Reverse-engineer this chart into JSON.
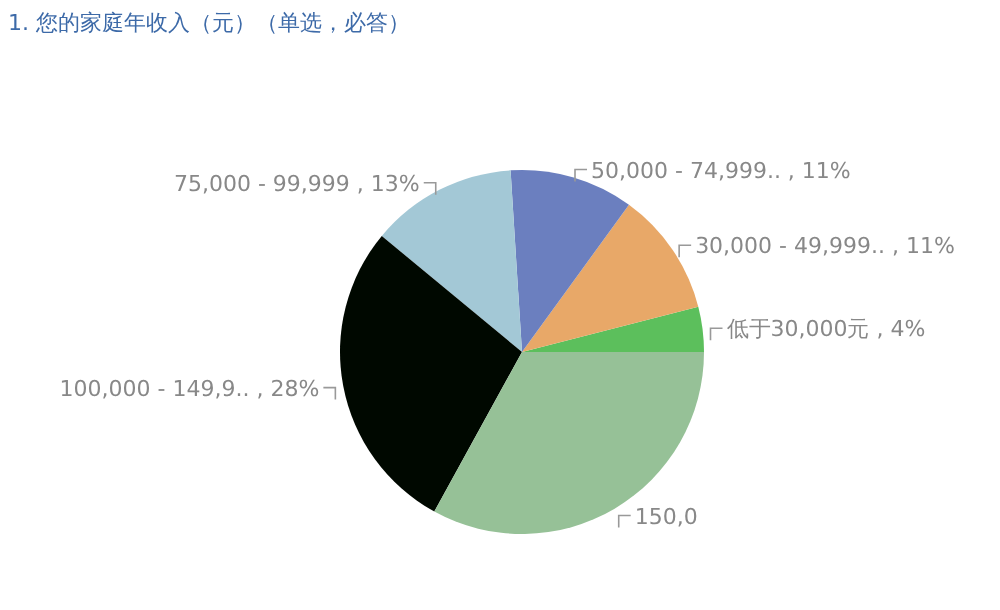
{
  "chart_data": {
    "type": "pie",
    "title": "1. 您的家庭年收入（元）（单选，必答）",
    "categories": [
      "低于30,000元",
      "30,000 - 49,999..",
      "50,000 - 74,999..",
      "75,000 - 99,999",
      "100,000 - 149,9..",
      "150,0"
    ],
    "values": [
      4,
      11,
      11,
      13,
      28,
      33
    ],
    "value_labels": [
      "4%",
      "11%",
      "11%",
      "13%",
      "28%",
      null
    ],
    "colors": [
      "#5cbf5c",
      "#e8a868",
      "#6b7fbf",
      "#a3c8d6",
      "#000800",
      "#96c197"
    ],
    "legend": false
  }
}
